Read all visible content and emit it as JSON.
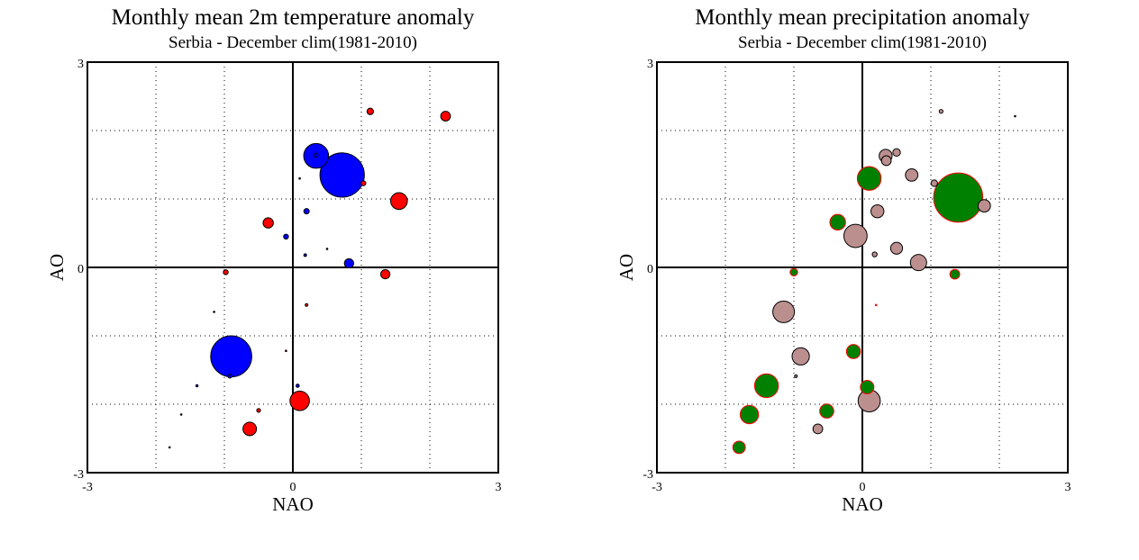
{
  "chart_data": [
    {
      "type": "scatter",
      "title": "Monthly mean 2m temperature anomaly",
      "subtitle": "Serbia - December  clim(1981-2010)",
      "xlabel": "NAO",
      "ylabel": "AO",
      "xlim": [
        -3,
        3
      ],
      "ylim": [
        -3,
        3
      ],
      "xticks": [
        "-3",
        "0",
        "3"
      ],
      "yticks": [
        "-3",
        "0",
        "3"
      ],
      "grid": true,
      "marker_size": "bubble radius scales with anomaly magnitude",
      "colors": {
        "positive": "#ff0000",
        "negative": "#0000ff",
        "outline": "#000000"
      },
      "points": [
        {
          "nao": 1.13,
          "ao": 2.28,
          "value": 0.12,
          "sign": "positive"
        },
        {
          "nao": 2.23,
          "ao": 2.21,
          "value": 0.18,
          "sign": "positive"
        },
        {
          "nao": 0.34,
          "ao": 1.63,
          "value": 0.46,
          "sign": "negative"
        },
        {
          "nao": 0.72,
          "ao": 1.35,
          "value": 0.82,
          "sign": "negative"
        },
        {
          "nao": 0.34,
          "ao": 1.64,
          "value": 0.07,
          "sign": "negative"
        },
        {
          "nao": 0.1,
          "ao": 1.3,
          "value": 0.02,
          "sign": "negative"
        },
        {
          "nao": 1.03,
          "ao": 1.23,
          "value": 0.09,
          "sign": "positive"
        },
        {
          "nao": 1.55,
          "ao": 0.97,
          "value": 0.31,
          "sign": "positive"
        },
        {
          "nao": 0.2,
          "ao": 0.82,
          "value": 0.1,
          "sign": "negative"
        },
        {
          "nao": -0.36,
          "ao": 0.65,
          "value": 0.19,
          "sign": "positive"
        },
        {
          "nao": -0.1,
          "ao": 0.45,
          "value": 0.09,
          "sign": "negative"
        },
        {
          "nao": 0.5,
          "ao": 0.27,
          "value": 0.015,
          "sign": "positive"
        },
        {
          "nao": 0.18,
          "ao": 0.18,
          "value": 0.05,
          "sign": "negative"
        },
        {
          "nao": 0.82,
          "ao": 0.06,
          "value": 0.17,
          "sign": "negative"
        },
        {
          "nao": -0.98,
          "ao": -0.07,
          "value": 0.09,
          "sign": "positive"
        },
        {
          "nao": 1.35,
          "ao": -0.1,
          "value": 0.17,
          "sign": "positive"
        },
        {
          "nao": 0.2,
          "ao": -0.55,
          "value": 0.05,
          "sign": "positive"
        },
        {
          "nao": -1.15,
          "ao": -0.65,
          "value": 0.01,
          "sign": "negative"
        },
        {
          "nao": -0.9,
          "ao": -1.3,
          "value": 0.76,
          "sign": "negative"
        },
        {
          "nao": -0.1,
          "ao": -1.22,
          "value": 0.02,
          "sign": "positive"
        },
        {
          "nao": -0.92,
          "ao": -1.59,
          "value": 0.07,
          "sign": "negative"
        },
        {
          "nao": -1.4,
          "ao": -1.73,
          "value": 0.04,
          "sign": "negative"
        },
        {
          "nao": 0.07,
          "ao": -1.73,
          "value": 0.06,
          "sign": "negative"
        },
        {
          "nao": 0.1,
          "ao": -1.95,
          "value": 0.36,
          "sign": "positive"
        },
        {
          "nao": -0.5,
          "ao": -2.09,
          "value": 0.07,
          "sign": "positive"
        },
        {
          "nao": -1.63,
          "ao": -2.15,
          "value": 0.02,
          "sign": "positive"
        },
        {
          "nao": -0.63,
          "ao": -2.36,
          "value": 0.25,
          "sign": "positive"
        },
        {
          "nao": -1.8,
          "ao": -2.63,
          "value": 0.01,
          "sign": "negative"
        }
      ]
    },
    {
      "type": "scatter",
      "title": "Monthly mean precipitation anomaly",
      "subtitle": "Serbia - December  clim(1981-2010)",
      "xlabel": "NAO",
      "ylabel": "AO",
      "xlim": [
        -3,
        3
      ],
      "ylim": [
        -3,
        3
      ],
      "xticks": [
        "-3",
        "0",
        "3"
      ],
      "yticks": [
        "-3",
        "0",
        "3"
      ],
      "grid": true,
      "marker_size": "bubble radius scales with anomaly magnitude",
      "colors": {
        "positive": "#008000",
        "negative": "#bc8f8f",
        "positive_outline": "#ff0000",
        "negative_outline": "#000000"
      },
      "points": [
        {
          "nao": 1.15,
          "ao": 2.28,
          "value": 0.07,
          "sign": "negative"
        },
        {
          "nao": 2.23,
          "ao": 2.21,
          "value": 0.02,
          "sign": "negative"
        },
        {
          "nao": 0.5,
          "ao": 1.68,
          "value": 0.14,
          "sign": "negative"
        },
        {
          "nao": 0.34,
          "ao": 1.63,
          "value": 0.24,
          "sign": "negative"
        },
        {
          "nao": 0.35,
          "ao": 1.56,
          "value": 0.18,
          "sign": "negative"
        },
        {
          "nao": 0.72,
          "ao": 1.35,
          "value": 0.23,
          "sign": "negative"
        },
        {
          "nao": 0.1,
          "ao": 1.3,
          "value": 0.44,
          "sign": "positive"
        },
        {
          "nao": 1.05,
          "ao": 1.23,
          "value": 0.12,
          "sign": "negative"
        },
        {
          "nao": 1.78,
          "ao": 0.9,
          "value": 0.23,
          "sign": "negative"
        },
        {
          "nao": 1.4,
          "ao": 1.02,
          "value": 0.91,
          "sign": "positive"
        },
        {
          "nao": 0.22,
          "ao": 0.82,
          "value": 0.24,
          "sign": "negative"
        },
        {
          "nao": -0.36,
          "ao": 0.66,
          "value": 0.29,
          "sign": "positive"
        },
        {
          "nao": -0.1,
          "ao": 0.46,
          "value": 0.43,
          "sign": "negative"
        },
        {
          "nao": 0.5,
          "ao": 0.28,
          "value": 0.22,
          "sign": "negative"
        },
        {
          "nao": 0.18,
          "ao": 0.19,
          "value": 0.09,
          "sign": "negative"
        },
        {
          "nao": 0.82,
          "ao": 0.07,
          "value": 0.3,
          "sign": "negative"
        },
        {
          "nao": -1.0,
          "ao": -0.07,
          "value": 0.14,
          "sign": "positive"
        },
        {
          "nao": 1.35,
          "ao": -0.1,
          "value": 0.18,
          "sign": "positive"
        },
        {
          "nao": 0.2,
          "ao": -0.55,
          "value": 0.01,
          "sign": "positive"
        },
        {
          "nao": -1.15,
          "ao": -0.65,
          "value": 0.4,
          "sign": "negative"
        },
        {
          "nao": -0.9,
          "ao": -1.3,
          "value": 0.32,
          "sign": "negative"
        },
        {
          "nao": -0.13,
          "ao": -1.23,
          "value": 0.26,
          "sign": "positive"
        },
        {
          "nao": -0.97,
          "ao": -1.59,
          "value": 0.05,
          "sign": "negative"
        },
        {
          "nao": -1.4,
          "ao": -1.73,
          "value": 0.44,
          "sign": "positive"
        },
        {
          "nao": 0.07,
          "ao": -1.75,
          "value": 0.25,
          "sign": "positive"
        },
        {
          "nao": 0.1,
          "ao": -1.95,
          "value": 0.41,
          "sign": "negative"
        },
        {
          "nao": -0.52,
          "ao": -2.1,
          "value": 0.26,
          "sign": "positive"
        },
        {
          "nao": -1.65,
          "ao": -2.15,
          "value": 0.34,
          "sign": "positive"
        },
        {
          "nao": -0.65,
          "ao": -2.36,
          "value": 0.18,
          "sign": "negative"
        },
        {
          "nao": -1.8,
          "ao": -2.63,
          "value": 0.23,
          "sign": "positive"
        }
      ]
    }
  ]
}
